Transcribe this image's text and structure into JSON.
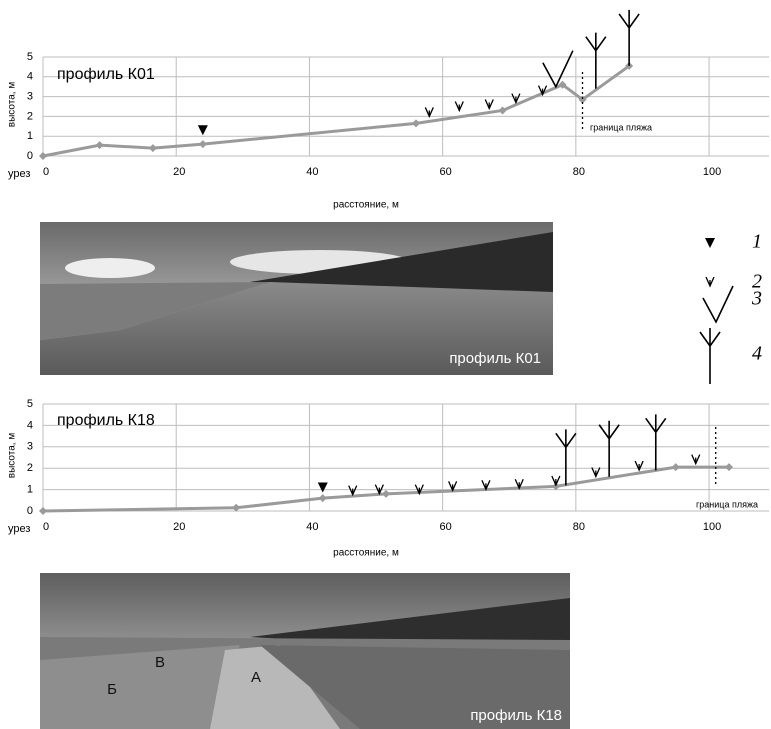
{
  "chart_data": [
    {
      "type": "line",
      "title": "профиль К01",
      "ylabel": "высота, м",
      "xlabel": "расстояние, м",
      "shore_label": "урез",
      "xlim": [
        0,
        109
      ],
      "xticks": [
        0,
        20,
        40,
        60,
        80,
        100
      ],
      "ylim": [
        0,
        5
      ],
      "yticks": [
        0,
        1,
        2,
        3,
        4,
        5
      ],
      "grid": true,
      "color": "#9a9a9a",
      "x": [
        0,
        8.5,
        16.5,
        24,
        56,
        69,
        78,
        81,
        88
      ],
      "values": [
        0,
        0.55,
        0.4,
        0.6,
        1.65,
        2.3,
        3.6,
        2.85,
        4.55
      ],
      "boundary": {
        "x": 81,
        "label": "граница пляжа"
      },
      "symbols": [
        {
          "kind": 1,
          "x": 24,
          "y": 1.3
        },
        {
          "kind": 2,
          "x": 58,
          "y": 2.2
        },
        {
          "kind": 2,
          "x": 62.5,
          "y": 2.5
        },
        {
          "kind": 2,
          "x": 67,
          "y": 2.6
        },
        {
          "kind": 2,
          "x": 71,
          "y": 2.9
        },
        {
          "kind": 2,
          "x": 75,
          "y": 3.3
        },
        {
          "kind": 3,
          "x": 77,
          "y": 3.5
        },
        {
          "kind": 4,
          "x": 83,
          "y": 3.4
        },
        {
          "kind": 4,
          "x": 88,
          "y": 4.55
        }
      ]
    },
    {
      "type": "line",
      "title": "профиль К18",
      "ylabel": "высота, м",
      "xlabel": "расстояние, м",
      "shore_label": "урез",
      "xlim": [
        0,
        109
      ],
      "xticks": [
        0,
        20,
        40,
        60,
        80,
        100
      ],
      "ylim": [
        0,
        5
      ],
      "yticks": [
        0,
        1,
        2,
        3,
        4,
        5
      ],
      "grid": true,
      "color": "#9a9a9a",
      "x": [
        0,
        29,
        42,
        51.5,
        77,
        95,
        103
      ],
      "values": [
        0,
        0.15,
        0.6,
        0.8,
        1.15,
        2.05,
        2.05
      ],
      "boundary": {
        "x": 101,
        "label": "граница пляжа"
      },
      "symbols": [
        {
          "kind": 1,
          "x": 42,
          "y": 1.1
        },
        {
          "kind": 2,
          "x": 46.5,
          "y": 0.95
        },
        {
          "kind": 2,
          "x": 50.5,
          "y": 1.0
        },
        {
          "kind": 2,
          "x": 56.5,
          "y": 1.0
        },
        {
          "kind": 2,
          "x": 61.5,
          "y": 1.15
        },
        {
          "kind": 2,
          "x": 66.5,
          "y": 1.2
        },
        {
          "kind": 2,
          "x": 71.5,
          "y": 1.25
        },
        {
          "kind": 2,
          "x": 77,
          "y": 1.4
        },
        {
          "kind": 2,
          "x": 83,
          "y": 1.8
        },
        {
          "kind": 2,
          "x": 89.5,
          "y": 2.1
        },
        {
          "kind": 2,
          "x": 98,
          "y": 2.4
        },
        {
          "kind": 4,
          "x": 78.5,
          "y": 1.2
        },
        {
          "kind": 4,
          "x": 85,
          "y": 1.6
        },
        {
          "kind": 4,
          "x": 92,
          "y": 1.9
        }
      ]
    }
  ],
  "legend": [
    "1",
    "2",
    "3",
    "4"
  ],
  "photos": [
    {
      "label": "профиль К01"
    },
    {
      "label": "профиль К18",
      "letters": [
        "А",
        "Б",
        "В"
      ]
    }
  ]
}
